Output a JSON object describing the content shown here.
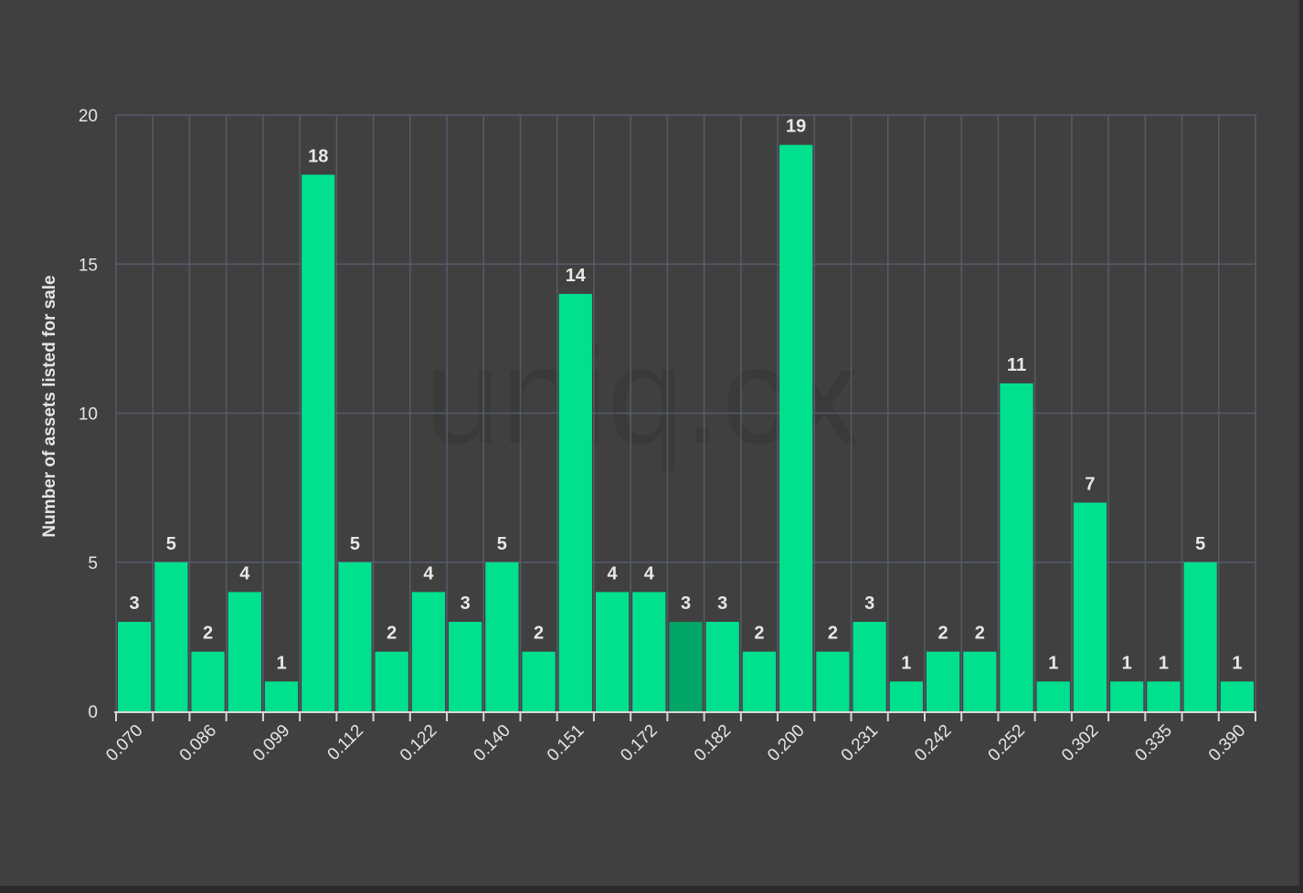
{
  "chart_data": {
    "type": "bar",
    "title": "",
    "xlabel": "",
    "ylabel": "Number of assets listed for sale",
    "ylim": [
      0,
      20
    ],
    "yticks": [
      0,
      5,
      10,
      15,
      20
    ],
    "grid": true,
    "watermark": "uniq.cx",
    "categories": [
      "0.070",
      "",
      "0.086",
      "",
      "0.099",
      "",
      "0.112",
      "",
      "0.122",
      "",
      "0.140",
      "",
      "0.151",
      "",
      "0.172",
      "",
      "0.182",
      "",
      "0.200",
      "",
      "0.231",
      "",
      "0.242",
      "",
      "0.252",
      "",
      "0.302",
      "",
      "0.335",
      "",
      "0.390"
    ],
    "values": [
      3,
      5,
      2,
      4,
      1,
      18,
      5,
      2,
      4,
      3,
      5,
      2,
      14,
      4,
      4,
      3,
      3,
      2,
      19,
      2,
      3,
      1,
      2,
      2,
      11,
      1,
      7,
      1,
      1,
      5,
      1
    ],
    "highlighted_index": 15,
    "colors": {
      "bar": "#00e08e",
      "bar_highlight": "#00a567",
      "grid": "#555b6b",
      "axis": "#d8d8d8",
      "background": "#404040"
    }
  }
}
